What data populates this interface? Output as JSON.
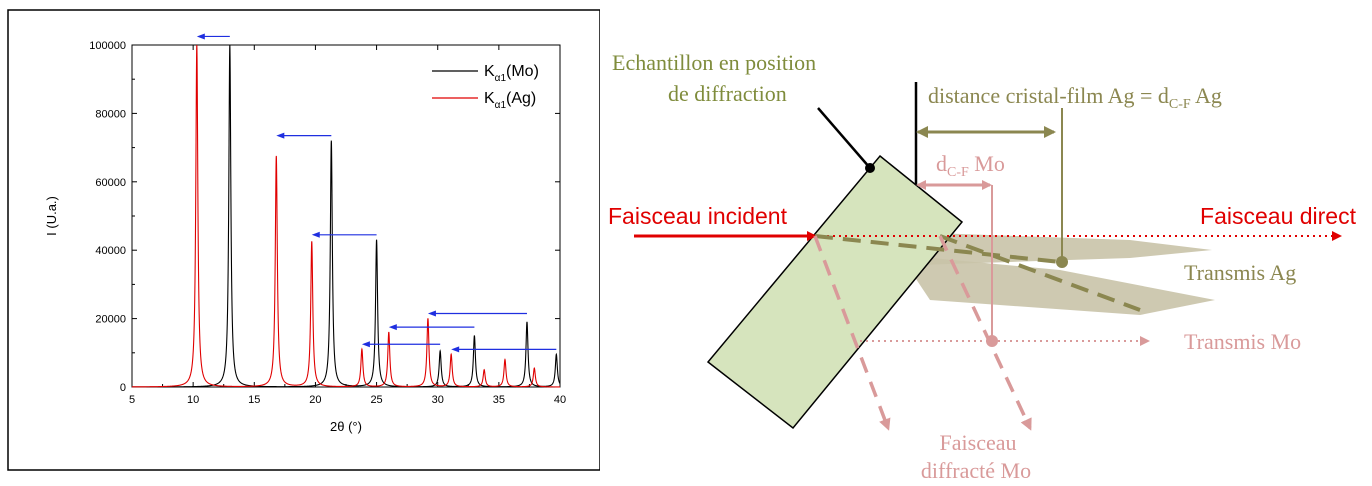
{
  "chart_data": {
    "type": "line",
    "xlabel": "2θ (°)",
    "ylabel": "I (U.a.)",
    "xlim": [
      5,
      40
    ],
    "ylim": [
      0,
      100000
    ],
    "xticks": [
      5,
      10,
      15,
      20,
      25,
      30,
      35,
      40
    ],
    "yticks": [
      0,
      20000,
      40000,
      60000,
      80000,
      100000
    ],
    "legend_position": "top-right",
    "series": [
      {
        "name": "Kα1(Mo)",
        "legend_base": "K",
        "legend_sub": "α1",
        "legend_suffix": "(Mo)",
        "color": "#000000",
        "peaks": [
          {
            "x": 13.0,
            "y": 100000
          },
          {
            "x": 21.3,
            "y": 72000
          },
          {
            "x": 25.0,
            "y": 43000
          },
          {
            "x": 30.2,
            "y": 10500
          },
          {
            "x": 33.0,
            "y": 15000
          },
          {
            "x": 37.3,
            "y": 19000
          },
          {
            "x": 39.7,
            "y": 9500
          }
        ]
      },
      {
        "name": "Kα1(Ag)",
        "legend_base": "K",
        "legend_sub": "α1",
        "legend_suffix": "(Ag)",
        "color": "#e00000",
        "peaks": [
          {
            "x": 10.3,
            "y": 100000
          },
          {
            "x": 16.8,
            "y": 67500
          },
          {
            "x": 19.7,
            "y": 42500
          },
          {
            "x": 23.8,
            "y": 11000
          },
          {
            "x": 26.0,
            "y": 16000
          },
          {
            "x": 29.2,
            "y": 20000
          },
          {
            "x": 31.1,
            "y": 9500
          },
          {
            "x": 33.8,
            "y": 5000
          },
          {
            "x": 35.5,
            "y": 8000
          },
          {
            "x": 37.9,
            "y": 5500
          }
        ]
      }
    ],
    "shift_arrows": [
      {
        "from_x": 13.0,
        "to_x": 10.3,
        "y": 102500
      },
      {
        "from_x": 21.3,
        "to_x": 16.8,
        "y": 73500
      },
      {
        "from_x": 25.0,
        "to_x": 19.7,
        "y": 44500
      },
      {
        "from_x": 37.3,
        "to_x": 29.2,
        "y": 21500
      },
      {
        "from_x": 33.0,
        "to_x": 26.0,
        "y": 17500
      },
      {
        "from_x": 30.2,
        "to_x": 23.8,
        "y": 12500
      },
      {
        "from_x": 39.7,
        "to_x": 31.1,
        "y": 11000
      }
    ],
    "arrow_color": "#1f2fe0"
  },
  "diagram": {
    "label_sample_1": "Echantillon en position",
    "label_sample_2": "de diffraction",
    "label_incident": "Faisceau incident",
    "label_direct": "Faisceau direct",
    "label_distance_prefix": "distance cristal-film Ag = d",
    "label_distance_sub": "C-F",
    "label_distance_suffix": " Ag",
    "label_dcf_mo_prefix": "d",
    "label_dcf_mo_sub": "C-F",
    "label_dcf_mo_suffix": " Mo",
    "label_transmis_ag": "Transmis Ag",
    "label_transmis_mo": "Transmis Mo",
    "label_diffracted_1": "Faisceau",
    "label_diffracted_2": "diffracté Mo",
    "colors": {
      "sample_fill": "#d6e4bd",
      "olive": "#8b8750",
      "olive_fill": "#c9c3a8",
      "pink": "#d99a9a",
      "red": "#e00000",
      "green_text": "#7f8c3c"
    }
  }
}
